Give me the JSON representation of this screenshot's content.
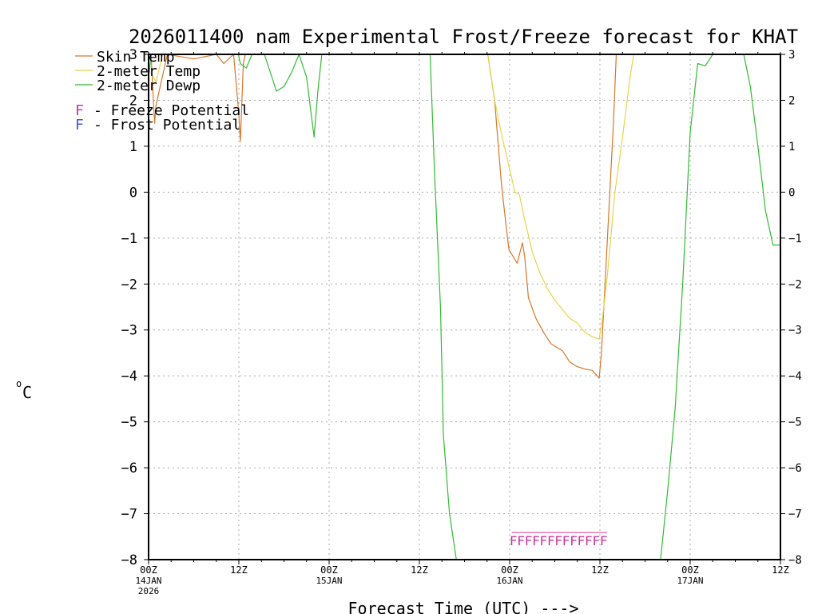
{
  "chart_data": {
    "type": "line",
    "title": "2026011400 nam Experimental Frost/Freeze forecast for KHAT",
    "ylabel": "°C",
    "ylabel_unit_super": "o",
    "ylabel_unit": "C",
    "xlabel": "Forecast Time (UTC) --->",
    "ylim": [
      -8,
      3
    ],
    "xlim": [
      0,
      84
    ],
    "yticks": [
      3,
      2,
      1,
      0,
      -1,
      -2,
      -3,
      -4,
      -5,
      -6,
      -7,
      -8
    ],
    "grid": true,
    "xticks": [
      {
        "hour": 0,
        "label": "00Z",
        "sub1": "14JAN",
        "sub2": "2026"
      },
      {
        "hour": 12,
        "label": "12Z",
        "sub1": "",
        "sub2": ""
      },
      {
        "hour": 24,
        "label": "00Z",
        "sub1": "15JAN",
        "sub2": ""
      },
      {
        "hour": 36,
        "label": "12Z",
        "sub1": "",
        "sub2": ""
      },
      {
        "hour": 48,
        "label": "00Z",
        "sub1": "16JAN",
        "sub2": ""
      },
      {
        "hour": 60,
        "label": "12Z",
        "sub1": "",
        "sub2": ""
      },
      {
        "hour": 72,
        "label": "00Z",
        "sub1": "17JAN",
        "sub2": ""
      },
      {
        "hour": 84,
        "label": "12Z",
        "sub1": "",
        "sub2": ""
      }
    ],
    "series": [
      {
        "name": "Skin Temp",
        "color": "#d9772a",
        "points": [
          [
            0.3,
            3.1
          ],
          [
            0.8,
            1.5
          ],
          [
            1,
            1.9
          ],
          [
            2.5,
            3.0
          ],
          [
            6,
            2.9
          ],
          [
            9,
            3.0
          ],
          [
            10,
            2.8
          ],
          [
            11.3,
            3.0
          ],
          [
            12.0,
            1.7
          ],
          [
            12.2,
            1.1
          ],
          [
            12.6,
            2.8
          ],
          [
            13,
            3.1
          ],
          [
            45,
            3.1
          ],
          [
            46,
            2.0
          ],
          [
            46.9,
            0.2
          ],
          [
            47.5,
            -0.7
          ],
          [
            47.9,
            -1.25
          ],
          [
            49.0,
            -1.55
          ],
          [
            49.7,
            -1.1
          ],
          [
            50.0,
            -1.4
          ],
          [
            50.5,
            -2.3
          ],
          [
            51.5,
            -2.75
          ],
          [
            52.5,
            -3.05
          ],
          [
            53.5,
            -3.3
          ],
          [
            55,
            -3.45
          ],
          [
            56,
            -3.7
          ],
          [
            57,
            -3.8
          ],
          [
            58,
            -3.85
          ],
          [
            59,
            -3.88
          ],
          [
            59.9,
            -4.05
          ],
          [
            60.2,
            -3.5
          ],
          [
            61,
            -1.0
          ],
          [
            61.8,
            1.5
          ],
          [
            62.2,
            3.1
          ]
        ]
      },
      {
        "name": "2-meter Temp",
        "color": "#e8d44a",
        "points": [
          [
            0.3,
            2.6
          ],
          [
            1,
            2.4
          ],
          [
            2,
            3.1
          ],
          [
            45,
            3.1
          ],
          [
            46,
            2.0
          ],
          [
            47,
            1.2
          ],
          [
            48,
            0.5
          ],
          [
            48.7,
            0.0
          ],
          [
            49.3,
            -0.05
          ],
          [
            50,
            -0.6
          ],
          [
            51,
            -1.3
          ],
          [
            52,
            -1.75
          ],
          [
            53,
            -2.1
          ],
          [
            54,
            -2.35
          ],
          [
            55,
            -2.55
          ],
          [
            56,
            -2.75
          ],
          [
            57,
            -2.85
          ],
          [
            58,
            -3.05
          ],
          [
            59,
            -3.15
          ],
          [
            59.9,
            -3.2
          ],
          [
            60.3,
            -2.8
          ],
          [
            61,
            -1.8
          ],
          [
            62,
            0.0
          ],
          [
            63,
            1.2
          ],
          [
            64,
            2.5
          ],
          [
            64.6,
            3.1
          ]
        ]
      },
      {
        "name": "2-meter Dewp",
        "color": "#33bb33",
        "points": [
          [
            0.1,
            2.6
          ],
          [
            0.4,
            3.1
          ],
          [
            11.8,
            3.1
          ],
          [
            12.2,
            2.8
          ],
          [
            13,
            2.7
          ],
          [
            14,
            3.1
          ],
          [
            15.2,
            3.1
          ],
          [
            17,
            2.2
          ],
          [
            18,
            2.3
          ],
          [
            19,
            2.6
          ],
          [
            20,
            3.0
          ],
          [
            21,
            2.5
          ],
          [
            22,
            1.2
          ],
          [
            22.5,
            2.2
          ],
          [
            23.1,
            3.1
          ],
          [
            37.4,
            3.1
          ],
          [
            38,
            0.5
          ],
          [
            38.8,
            -2.5
          ],
          [
            39.2,
            -5.3
          ],
          [
            40,
            -7.0
          ],
          [
            41.0,
            -8.1
          ],
          [
            68.0,
            -8.1
          ],
          [
            69.0,
            -6.5
          ],
          [
            70,
            -4.7
          ],
          [
            71,
            -2.0
          ],
          [
            72,
            1.3
          ],
          [
            73,
            2.8
          ],
          [
            74,
            2.75
          ],
          [
            75,
            3.0
          ],
          [
            79,
            3.1
          ],
          [
            80,
            2.3
          ],
          [
            81,
            1.0
          ],
          [
            82,
            -0.4
          ],
          [
            83,
            -1.15
          ],
          [
            84,
            -1.15
          ]
        ]
      }
    ],
    "freeze_markers": {
      "symbol": "F",
      "color": "#cc3399",
      "hours": [
        48.5,
        49.5,
        50.5,
        51.5,
        52.5,
        53.5,
        54.5,
        55.5,
        56.5,
        57.5,
        58.5,
        59.5,
        60.5
      ],
      "level": -7.55
    },
    "legend": {
      "placement": "top-left",
      "entries": [
        {
          "label": "Skin Temp",
          "color": "#d9772a"
        },
        {
          "label": "2-meter Temp",
          "color": "#e8d44a"
        },
        {
          "label": "2-meter Dewp",
          "color": "#33bb33"
        }
      ],
      "notes": [
        {
          "symbol": "F",
          "text": "- Freeze Potential",
          "color": "#cc3399"
        },
        {
          "symbol": "F",
          "text": "- Frost Potential",
          "color": "#4455dd"
        }
      ]
    }
  }
}
